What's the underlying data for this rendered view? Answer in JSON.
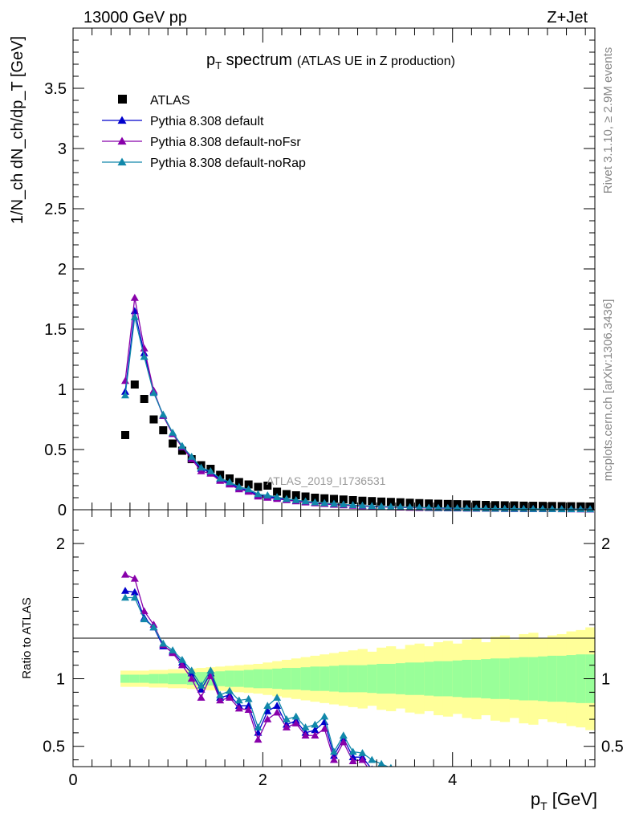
{
  "header": {
    "left": "13000 GeV pp",
    "right": "Z+Jet"
  },
  "side_labels": {
    "rivet": "Rivet 3.1.10, ≥ 2.9M events",
    "mcplots": "mcplots.cern.ch [arXiv:1306.3436]"
  },
  "watermark": "ATLAS_2019_I1736531",
  "colors": {
    "atlas": "#000000",
    "default": "#0000cc",
    "noFsr": "#8800aa",
    "noRap": "#1188aa",
    "band_inner": "#99ff99",
    "band_outer": "#ffff99"
  },
  "chart_data": [
    {
      "type": "scatter",
      "panel": "main",
      "title_main": "p",
      "title_sub": "T",
      "title_rest": " spectrum",
      "title_paren": "(ATLAS UE in Z production)",
      "ylabel": "1/N_ch dN_ch/dp_T [GeV]",
      "ylim": [
        0,
        4.0
      ],
      "yticks": [
        0,
        0.5,
        1,
        1.5,
        2,
        2.5,
        3,
        3.5
      ],
      "ytick_labels": [
        "0",
        "0.5",
        "1",
        "1.5",
        "2",
        "2.5",
        "3",
        "3.5"
      ],
      "legend_position": "top-left",
      "x": [
        0.55,
        0.65,
        0.75,
        0.85,
        0.95,
        1.05,
        1.15,
        1.25,
        1.35,
        1.45,
        1.55,
        1.65,
        1.75,
        1.85,
        1.95,
        2.05,
        2.15,
        2.25,
        2.35,
        2.45,
        2.55,
        2.65,
        2.75,
        2.85,
        2.95,
        3.05,
        3.15,
        3.25,
        3.35,
        3.45,
        3.55,
        3.65,
        3.75,
        3.85,
        3.95,
        4.05,
        4.15,
        4.25,
        4.35,
        4.45,
        4.55,
        4.65,
        4.75,
        4.85,
        4.95,
        5.05,
        5.15,
        5.25,
        5.35,
        5.45
      ],
      "series": [
        {
          "name": "ATLAS",
          "marker": "square",
          "values": [
            0.62,
            1.04,
            0.92,
            0.75,
            0.66,
            0.55,
            0.49,
            0.42,
            0.37,
            0.34,
            0.29,
            0.26,
            0.23,
            0.21,
            0.19,
            0.2,
            0.15,
            0.13,
            0.12,
            0.11,
            0.1,
            0.095,
            0.09,
            0.085,
            0.08,
            0.075,
            0.072,
            0.068,
            0.065,
            0.062,
            0.058,
            0.055,
            0.052,
            0.05,
            0.048,
            0.046,
            0.044,
            0.042,
            0.04,
            0.038,
            0.037,
            0.036,
            0.034,
            0.033,
            0.032,
            0.031,
            0.03,
            0.029,
            0.028,
            0.027
          ]
        },
        {
          "name": "Pythia 8.308 default",
          "marker": "triangle",
          "values": [
            0.98,
            1.65,
            1.3,
            0.98,
            0.78,
            0.63,
            0.52,
            0.43,
            0.34,
            0.31,
            0.25,
            0.22,
            0.18,
            0.16,
            0.12,
            0.11,
            0.098,
            0.085,
            0.075,
            0.065,
            0.058,
            0.052,
            0.046,
            0.041,
            0.036,
            0.032,
            0.029,
            0.026,
            0.023,
            0.021,
            0.019,
            0.017,
            0.015,
            0.014,
            0.013,
            0.012,
            0.011,
            0.01,
            0.009,
            0.008,
            0.0075,
            0.007,
            0.0065,
            0.006,
            0.0055,
            0.005,
            0.0046,
            0.0042,
            0.0039,
            0.0036
          ]
        },
        {
          "name": "Pythia 8.308 default-noFsr",
          "marker": "triangle",
          "values": [
            1.07,
            1.76,
            1.34,
            0.99,
            0.78,
            0.63,
            0.52,
            0.42,
            0.32,
            0.3,
            0.24,
            0.21,
            0.17,
            0.15,
            0.11,
            0.1,
            0.09,
            0.08,
            0.07,
            0.061,
            0.054,
            0.048,
            0.042,
            0.037,
            0.033,
            0.029,
            0.026,
            0.023,
            0.021,
            0.019,
            0.017,
            0.015,
            0.014,
            0.013,
            0.012,
            0.011,
            0.01,
            0.009,
            0.008,
            0.0075,
            0.007,
            0.0065,
            0.006,
            0.0055,
            0.005,
            0.0046,
            0.0042,
            0.0039,
            0.0036,
            0.0033
          ]
        },
        {
          "name": "Pythia 8.308 default-noRap",
          "marker": "triangle",
          "values": [
            0.95,
            1.6,
            1.27,
            0.97,
            0.79,
            0.64,
            0.53,
            0.44,
            0.35,
            0.32,
            0.26,
            0.23,
            0.19,
            0.17,
            0.13,
            0.12,
            0.105,
            0.09,
            0.08,
            0.07,
            0.062,
            0.056,
            0.05,
            0.044,
            0.039,
            0.035,
            0.031,
            0.028,
            0.025,
            0.023,
            0.021,
            0.019,
            0.017,
            0.015,
            0.014,
            0.013,
            0.012,
            0.011,
            0.01,
            0.009,
            0.0085,
            0.008,
            0.0074,
            0.0068,
            0.0063,
            0.0058,
            0.0054,
            0.005,
            0.0046,
            0.0043
          ]
        }
      ]
    },
    {
      "type": "line",
      "panel": "ratio",
      "ylabel": "Ratio to ATLAS",
      "xlabel_main": "p",
      "xlabel_sub": "T",
      "xlabel_rest": " [GeV]",
      "xlim": [
        0,
        5.5
      ],
      "xticks": [
        0,
        2,
        4
      ],
      "xtick_labels": [
        "0",
        "2",
        "4"
      ],
      "ylim": [
        0.35,
        2.25
      ],
      "yticks": [
        0.5,
        1,
        2
      ],
      "ytick_labels": [
        "0.5",
        "1",
        "2"
      ],
      "band_x": [
        0.55,
        0.65,
        0.75,
        0.85,
        0.95,
        1.05,
        1.15,
        1.25,
        1.35,
        1.45,
        1.55,
        1.65,
        1.75,
        1.85,
        1.95,
        2.05,
        2.15,
        2.25,
        2.35,
        2.45,
        2.55,
        2.65,
        2.75,
        2.85,
        2.95,
        3.05,
        3.15,
        3.25,
        3.35,
        3.45,
        3.55,
        3.65,
        3.75,
        3.85,
        3.95,
        4.05,
        4.15,
        4.25,
        4.35,
        4.45,
        4.55,
        4.65,
        4.75,
        4.85,
        4.95,
        5.05,
        5.15,
        5.25,
        5.35,
        5.45
      ],
      "band_inner_half": [
        0.03,
        0.03,
        0.03,
        0.035,
        0.035,
        0.04,
        0.04,
        0.045,
        0.05,
        0.05,
        0.055,
        0.06,
        0.06,
        0.065,
        0.07,
        0.07,
        0.075,
        0.08,
        0.08,
        0.085,
        0.09,
        0.09,
        0.095,
        0.1,
        0.1,
        0.1,
        0.105,
        0.11,
        0.11,
        0.115,
        0.12,
        0.12,
        0.125,
        0.13,
        0.13,
        0.135,
        0.14,
        0.14,
        0.145,
        0.15,
        0.15,
        0.155,
        0.16,
        0.16,
        0.165,
        0.17,
        0.17,
        0.175,
        0.18,
        0.18
      ],
      "band_outer_half": [
        0.06,
        0.06,
        0.06,
        0.065,
        0.065,
        0.07,
        0.07,
        0.075,
        0.08,
        0.085,
        0.09,
        0.095,
        0.1,
        0.105,
        0.11,
        0.12,
        0.13,
        0.14,
        0.15,
        0.16,
        0.17,
        0.18,
        0.19,
        0.2,
        0.21,
        0.22,
        0.2,
        0.23,
        0.24,
        0.22,
        0.25,
        0.26,
        0.24,
        0.27,
        0.28,
        0.26,
        0.29,
        0.3,
        0.27,
        0.31,
        0.32,
        0.29,
        0.33,
        0.34,
        0.3,
        0.32,
        0.33,
        0.35,
        0.36,
        0.38
      ],
      "series": [
        {
          "name": "Pythia 8.308 default",
          "x": [
            0.55,
            0.65,
            0.75,
            0.85,
            0.95,
            1.05,
            1.15,
            1.25,
            1.35,
            1.45,
            1.55,
            1.65,
            1.75,
            1.85,
            1.95,
            2.05,
            2.15,
            2.25,
            2.35,
            2.45,
            2.55,
            2.65,
            2.75,
            2.85,
            2.95,
            3.05,
            3.15,
            3.25
          ],
          "values": [
            1.65,
            1.64,
            1.45,
            1.38,
            1.24,
            1.2,
            1.12,
            1.04,
            0.92,
            1.04,
            0.86,
            0.88,
            0.8,
            0.8,
            0.6,
            0.76,
            0.8,
            0.66,
            0.69,
            0.6,
            0.62,
            0.68,
            0.43,
            0.56,
            0.42,
            0.42,
            0.33,
            0.3
          ]
        },
        {
          "name": "Pythia 8.308 default-noFsr",
          "x": [
            0.55,
            0.65,
            0.75,
            0.85,
            0.95,
            1.05,
            1.15,
            1.25,
            1.35,
            1.45,
            1.55,
            1.65,
            1.75,
            1.85,
            1.95,
            2.05,
            2.15,
            2.25,
            2.35,
            2.45,
            2.55,
            2.65,
            2.75,
            2.85,
            2.95,
            3.05,
            3.15
          ],
          "values": [
            1.77,
            1.74,
            1.5,
            1.4,
            1.25,
            1.19,
            1.1,
            1.0,
            0.86,
            1.02,
            0.84,
            0.86,
            0.78,
            0.77,
            0.55,
            0.7,
            0.75,
            0.64,
            0.67,
            0.58,
            0.58,
            0.63,
            0.4,
            0.53,
            0.39,
            0.4,
            0.3
          ]
        },
        {
          "name": "Pythia 8.308 default-noRap",
          "x": [
            0.55,
            0.65,
            0.75,
            0.85,
            0.95,
            1.05,
            1.15,
            1.25,
            1.35,
            1.45,
            1.55,
            1.65,
            1.75,
            1.85,
            1.95,
            2.05,
            2.15,
            2.25,
            2.35,
            2.45,
            2.55,
            2.65,
            2.75,
            2.85,
            2.95,
            3.05,
            3.15,
            3.25,
            3.35
          ],
          "values": [
            1.6,
            1.6,
            1.44,
            1.38,
            1.26,
            1.21,
            1.14,
            1.06,
            0.95,
            1.06,
            0.88,
            0.91,
            0.84,
            0.85,
            0.64,
            0.8,
            0.86,
            0.7,
            0.72,
            0.64,
            0.66,
            0.72,
            0.46,
            0.58,
            0.46,
            0.45,
            0.4,
            0.37,
            0.34
          ]
        }
      ]
    }
  ]
}
